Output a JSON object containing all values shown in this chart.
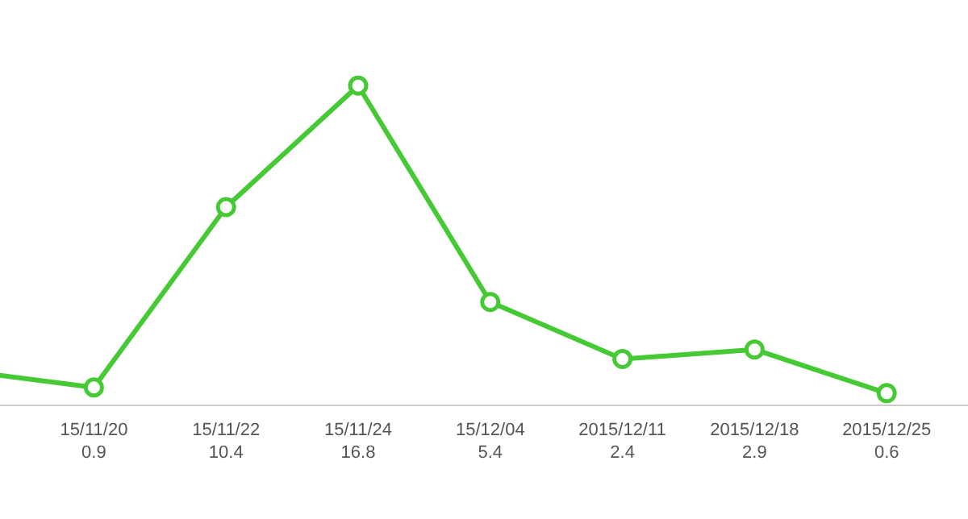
{
  "chart_data": {
    "type": "line",
    "categories": [
      null,
      "15/11/20",
      "15/11/22",
      "15/11/24",
      "15/12/04",
      "2015/12/11",
      "2015/12/18",
      "2015/12/25"
    ],
    "values": [
      1.8,
      0.9,
      10.4,
      16.8,
      5.4,
      2.4,
      2.9,
      0.6
    ],
    "value_labels": [
      null,
      "0.9",
      "10.4",
      "16.8",
      "5.4",
      "2.4",
      "2.9",
      "0.6"
    ],
    "color": "#45c934",
    "marker": "circle"
  }
}
